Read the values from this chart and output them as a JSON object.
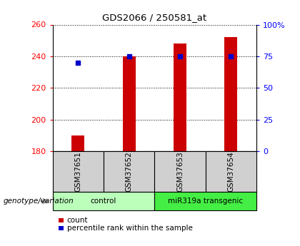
{
  "title": "GDS2066 / 250581_at",
  "samples": [
    "GSM37651",
    "GSM37652",
    "GSM37653",
    "GSM37654"
  ],
  "bar_values": [
    190,
    240,
    248,
    252
  ],
  "percentile_values": [
    70,
    75,
    75,
    75
  ],
  "ylim_left": [
    180,
    260
  ],
  "ylim_right": [
    0,
    100
  ],
  "yticks_left": [
    180,
    200,
    220,
    240,
    260
  ],
  "yticks_right": [
    0,
    25,
    50,
    75,
    100
  ],
  "ytick_labels_right": [
    "0",
    "25",
    "50",
    "75",
    "100%"
  ],
  "bar_color": "#cc0000",
  "percentile_color": "#0000cc",
  "bar_bottom": 180,
  "groups": [
    {
      "label": "control",
      "samples": [
        0,
        1
      ],
      "color": "#bbffbb"
    },
    {
      "label": "miR319a transgenic",
      "samples": [
        2,
        3
      ],
      "color": "#44ee44"
    }
  ],
  "group_label": "genotype/variation",
  "grid_style": "dotted",
  "sample_box_color": "#d0d0d0",
  "background_color": "#ffffff"
}
